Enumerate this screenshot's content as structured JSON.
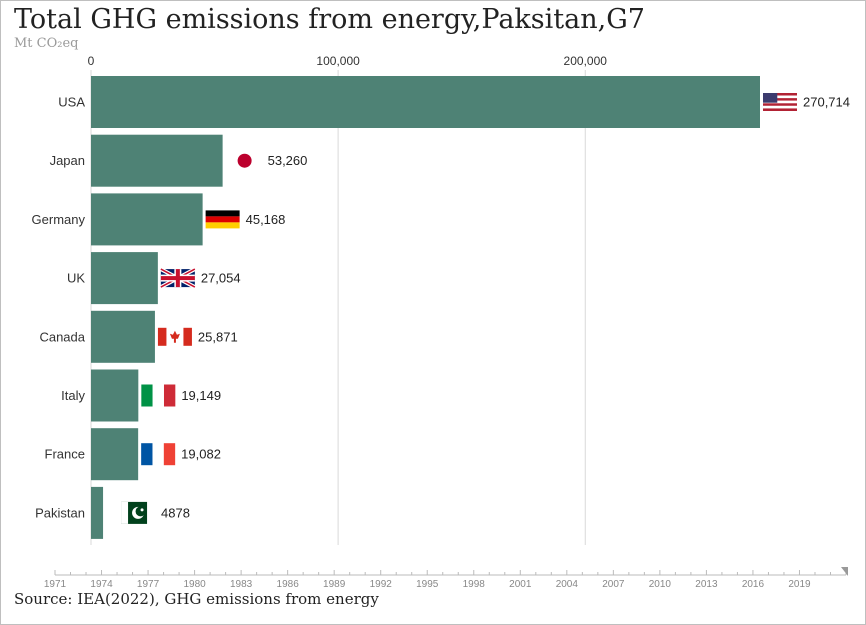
{
  "title": "Total GHG emissions from energy,Paksitan,G7",
  "subtitle": "Mt CO₂eq",
  "source": "Source: IEA(2022), GHG emissions from energy",
  "colors": {
    "bar": "#4e8275",
    "grid": "#d9d9d9"
  },
  "chart_data": {
    "type": "bar",
    "orientation": "horizontal",
    "categories": [
      "USA",
      "Japan",
      "Germany",
      "UK",
      "Canada",
      "Italy",
      "France",
      "Pakistan"
    ],
    "values": [
      270714,
      53260,
      45168,
      27054,
      25871,
      19149,
      19082,
      4878
    ],
    "value_labels": [
      "270,714",
      "53,260",
      "45,168",
      "27,054",
      "25,871",
      "19,149",
      "19,082",
      "4878"
    ],
    "flags": [
      "us-flag",
      "japan-flag",
      "germany-flag",
      "uk-flag",
      "canada-flag",
      "italy-flag",
      "france-flag",
      "pakistan-flag"
    ],
    "xlim": [
      0,
      270714
    ],
    "xticks": [
      0,
      100000,
      200000
    ],
    "xtick_labels": [
      "0",
      "100,000",
      "200,000"
    ],
    "grid": true
  },
  "timeline": {
    "years": [
      "1971",
      "1974",
      "1977",
      "1980",
      "1983",
      "1986",
      "1989",
      "1992",
      "1995",
      "1998",
      "2001",
      "2004",
      "2007",
      "2010",
      "2013",
      "2016",
      "2019"
    ],
    "current_position": 1.0
  }
}
